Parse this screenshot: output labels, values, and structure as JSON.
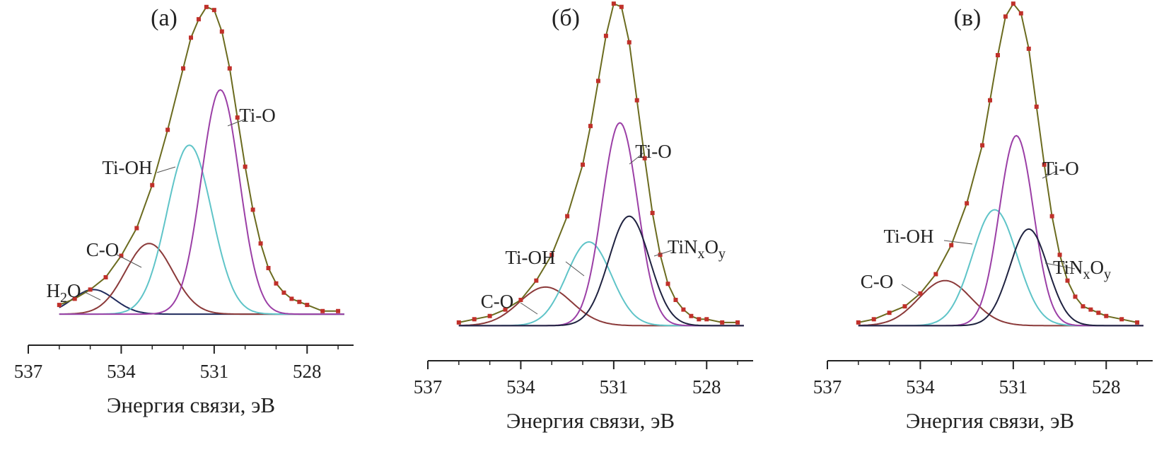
{
  "chart_data": [
    {
      "type": "line",
      "panel": "(а)",
      "xlabel": "Энергия связи, эВ",
      "xlim": [
        537,
        526.5
      ],
      "x_reversed": true,
      "xticks": [
        537,
        534,
        531,
        528
      ],
      "ylim": [
        0,
        1.05
      ],
      "grid": false,
      "experimental": {
        "name": "",
        "x": [
          536,
          535.5,
          535,
          534.5,
          534,
          533.5,
          533,
          532.5,
          532,
          531.75,
          531.5,
          531.25,
          531,
          530.75,
          530.5,
          530.25,
          530,
          529.75,
          529.5,
          529.25,
          529,
          528.75,
          528.5,
          528.25,
          528,
          527.5,
          527
        ],
        "y": [
          0.03,
          0.05,
          0.08,
          0.12,
          0.19,
          0.28,
          0.42,
          0.6,
          0.8,
          0.9,
          0.96,
          1.0,
          0.99,
          0.92,
          0.8,
          0.64,
          0.48,
          0.34,
          0.23,
          0.15,
          0.1,
          0.07,
          0.05,
          0.04,
          0.03,
          0.01,
          0.01
        ]
      },
      "components": [
        {
          "name": "H2O",
          "label_main": "H",
          "label_sub": "2",
          "label_tail": "O",
          "color": "#1f2a5c",
          "center": 534.9,
          "height": 0.08,
          "fwhm": 1.6
        },
        {
          "name": "C-O",
          "label_main": "C-O",
          "label_sub": "",
          "label_tail": "",
          "color": "#8b3a3a",
          "center": 533.1,
          "height": 0.23,
          "fwhm": 1.8
        },
        {
          "name": "Ti-OH",
          "label_main": "Ti-OH",
          "label_sub": "",
          "label_tail": "",
          "color": "#5fc4c8",
          "center": 531.8,
          "height": 0.55,
          "fwhm": 1.7
        },
        {
          "name": "Ti-O",
          "label_main": "Ti-O",
          "label_sub": "",
          "label_tail": "",
          "color": "#9b3fa6",
          "center": 530.8,
          "height": 0.73,
          "fwhm": 1.45
        }
      ],
      "envelope_color": "#6b6b1f",
      "point_color": "#c0302a"
    },
    {
      "type": "line",
      "panel": "(б)",
      "xlabel": "Энергия связи, эВ",
      "xlim": [
        537,
        526.5
      ],
      "x_reversed": true,
      "xticks": [
        537,
        534,
        531,
        528
      ],
      "ylim": [
        0,
        1.05
      ],
      "grid": false,
      "experimental": {
        "name": "",
        "x": [
          536,
          535.5,
          535,
          534.5,
          534,
          533.5,
          533,
          532.5,
          532,
          531.75,
          531.5,
          531.25,
          531,
          530.75,
          530.5,
          530.25,
          530,
          529.75,
          529.5,
          529.25,
          529,
          528.75,
          528.5,
          528.25,
          528,
          527.5,
          527
        ],
        "y": [
          0.01,
          0.02,
          0.03,
          0.05,
          0.08,
          0.14,
          0.22,
          0.34,
          0.5,
          0.62,
          0.76,
          0.9,
          1.0,
          0.99,
          0.88,
          0.7,
          0.52,
          0.35,
          0.22,
          0.13,
          0.08,
          0.05,
          0.03,
          0.02,
          0.02,
          0.01,
          0.01
        ]
      },
      "components": [
        {
          "name": "C-O",
          "label_main": "C-O",
          "label_sub": "",
          "label_tail": "",
          "color": "#8b3a3a",
          "center": 533.2,
          "height": 0.12,
          "fwhm": 2.0
        },
        {
          "name": "Ti-OH",
          "label_main": "Ti-OH",
          "label_sub": "",
          "label_tail": "",
          "color": "#5fc4c8",
          "center": 531.8,
          "height": 0.26,
          "fwhm": 1.7
        },
        {
          "name": "Ti-O",
          "label_main": "Ti-O",
          "label_sub": "",
          "label_tail": "",
          "color": "#9b3fa6",
          "center": 530.8,
          "height": 0.63,
          "fwhm": 1.35
        },
        {
          "name": "TiNxOy",
          "label_main": "TiN",
          "label_sub": "x",
          "label_tail": "O",
          "label_sub2": "y",
          "color": "#1f2240",
          "center": 530.5,
          "height": 0.34,
          "fwhm": 1.55
        }
      ],
      "envelope_color": "#6b6b1f",
      "point_color": "#c0302a"
    },
    {
      "type": "line",
      "panel": "(в)",
      "xlabel": "Энергия связи, эВ",
      "xlim": [
        537,
        526.5
      ],
      "x_reversed": true,
      "xticks": [
        537,
        534,
        531,
        528
      ],
      "ylim": [
        0,
        1.05
      ],
      "grid": false,
      "experimental": {
        "name": "",
        "x": [
          536,
          535.5,
          535,
          534.5,
          534,
          533.5,
          533,
          532.5,
          532,
          531.75,
          531.5,
          531.25,
          531,
          530.75,
          530.5,
          530.25,
          530,
          529.75,
          529.5,
          529.25,
          529,
          528.75,
          528.5,
          528.25,
          528,
          527.5,
          527
        ],
        "y": [
          0.01,
          0.02,
          0.04,
          0.06,
          0.1,
          0.16,
          0.25,
          0.38,
          0.56,
          0.7,
          0.84,
          0.96,
          1.0,
          0.97,
          0.86,
          0.68,
          0.5,
          0.34,
          0.22,
          0.14,
          0.09,
          0.06,
          0.05,
          0.04,
          0.03,
          0.02,
          0.01
        ]
      },
      "components": [
        {
          "name": "C-O",
          "label_main": "C-O",
          "label_sub": "",
          "label_tail": "",
          "color": "#8b3a3a",
          "center": 533.2,
          "height": 0.14,
          "fwhm": 2.0
        },
        {
          "name": "Ti-OH",
          "label_main": "Ti-OH",
          "label_sub": "",
          "label_tail": "",
          "color": "#5fc4c8",
          "center": 531.6,
          "height": 0.36,
          "fwhm": 1.7
        },
        {
          "name": "Ti-O",
          "label_main": "Ti-O",
          "label_sub": "",
          "label_tail": "",
          "color": "#9b3fa6",
          "center": 530.9,
          "height": 0.59,
          "fwhm": 1.3
        },
        {
          "name": "TiNxOy",
          "label_main": "TiN",
          "label_sub": "x",
          "label_tail": "O",
          "label_sub2": "y",
          "color": "#1f2240",
          "center": 530.5,
          "height": 0.3,
          "fwhm": 1.45
        }
      ],
      "envelope_color": "#6b6b1f",
      "point_color": "#c0302a"
    }
  ]
}
